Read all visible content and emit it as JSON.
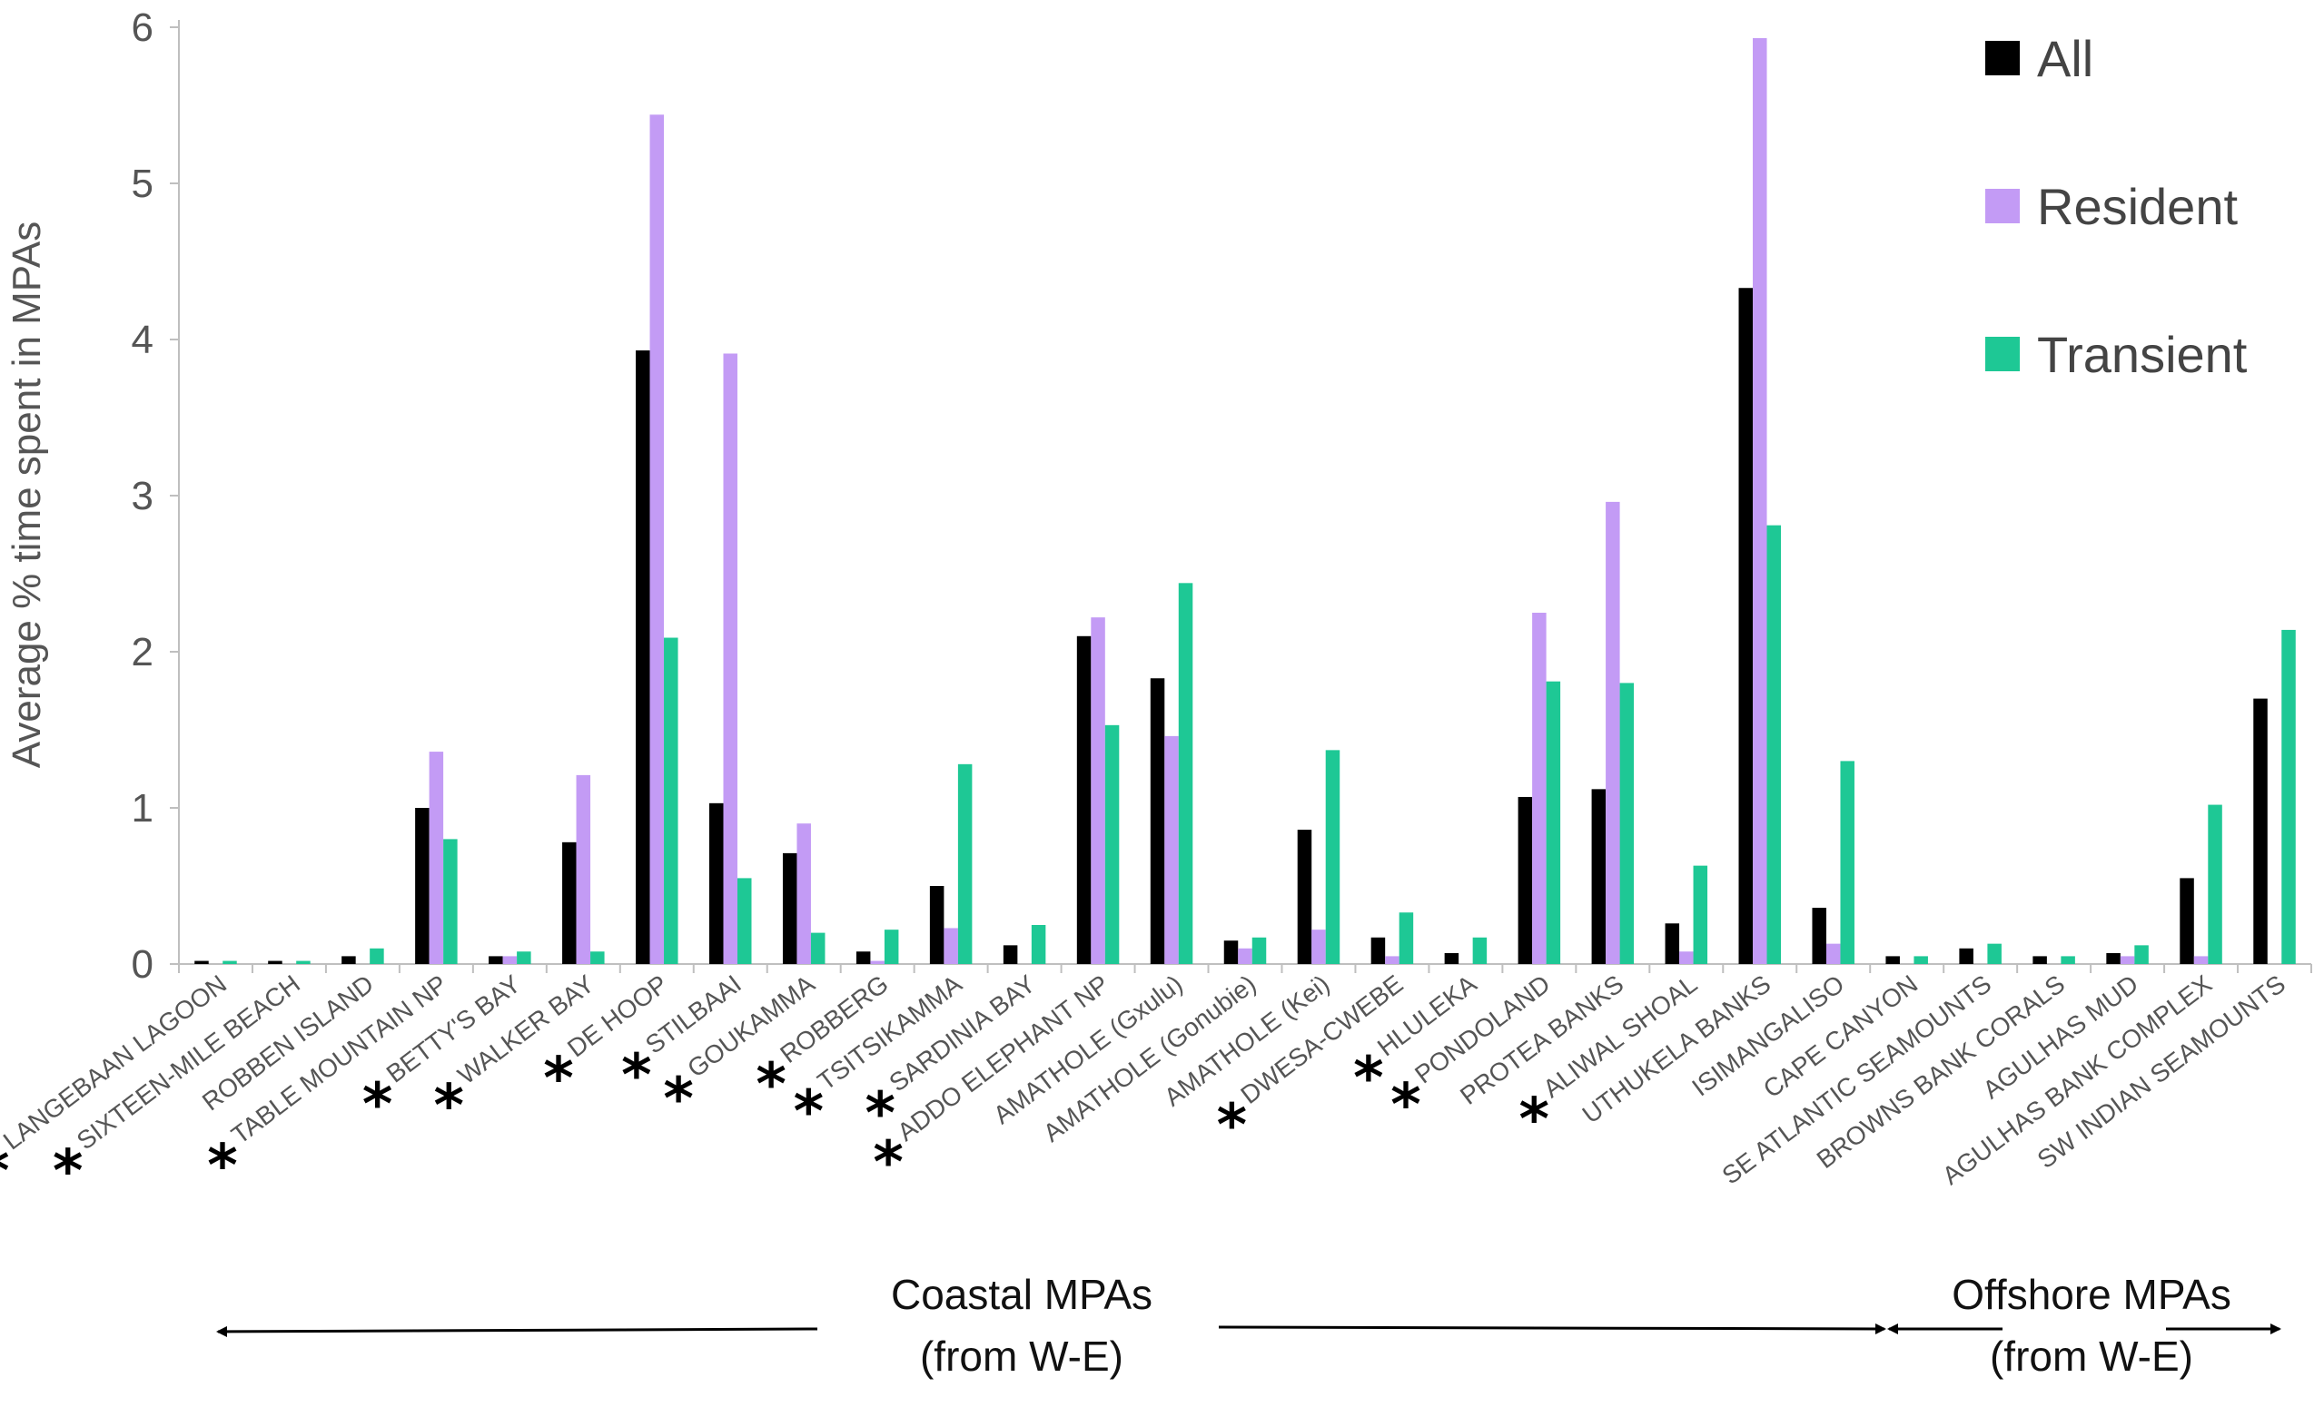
{
  "chart_data": {
    "type": "bar",
    "title": "",
    "xlabel": "",
    "ylabel": "Average % time spent in MPAs",
    "ylim": [
      0,
      6
    ],
    "yticks": [
      0,
      1,
      2,
      3,
      4,
      5,
      6
    ],
    "grid": false,
    "legend_position": "top-right",
    "categories": [
      "LANGEBAAN LAGOON",
      "SIXTEEN-MILE BEACH",
      "ROBBEN ISLAND",
      "TABLE MOUNTAIN NP",
      "BETTY'S BAY",
      "WALKER BAY",
      "DE HOOP",
      "STILBAAI",
      "GOUKAMMA",
      "ROBBERG",
      "TSITSIKAMMA",
      "SARDINIA BAY",
      "ADDO ELEPHANT NP",
      "AMATHOLE (Gxulu)",
      "AMATHOLE (Gonubie)",
      "AMATHOLE (Kei)",
      "DWESA-CWEBE",
      "HLULEKA",
      "PONDOLAND",
      "PROTEA BANKS",
      "ALIWAL SHOAL",
      "UTHUKELA BANKS",
      "ISIMANGALISO",
      "CAPE CANYON",
      "SE ATLANTIC SEAMOUNTS",
      "BROWNS BANK CORALS",
      "AGULHAS MUD",
      "AGULHAS BANK COMPLEX",
      "SW INDIAN SEAMOUNTS"
    ],
    "starred": [
      true,
      true,
      false,
      true,
      true,
      true,
      true,
      true,
      true,
      true,
      true,
      true,
      true,
      false,
      false,
      false,
      true,
      true,
      true,
      false,
      true,
      false,
      false,
      false,
      false,
      false,
      false,
      false,
      false
    ],
    "star_symbol": "*",
    "series": [
      {
        "name": "All",
        "color": "#000000",
        "values": [
          0.02,
          0.02,
          0.05,
          1.0,
          0.05,
          0.78,
          3.93,
          1.03,
          0.71,
          0.08,
          0.5,
          0.12,
          2.1,
          1.83,
          0.15,
          0.86,
          0.17,
          0.07,
          1.07,
          1.12,
          0.26,
          4.33,
          0.36,
          0.05,
          0.1,
          0.05,
          0.07,
          0.55,
          1.7
        ]
      },
      {
        "name": "Resident",
        "color": "#c39bf5",
        "values": [
          0.0,
          0.0,
          0.0,
          1.36,
          0.05,
          1.21,
          5.44,
          3.91,
          0.9,
          0.02,
          0.23,
          0.0,
          2.22,
          1.46,
          0.1,
          0.22,
          0.05,
          0.0,
          2.25,
          2.96,
          0.08,
          5.93,
          0.13,
          0.0,
          0.0,
          0.0,
          0.05,
          0.05,
          0.0
        ]
      },
      {
        "name": "Transient",
        "color": "#1ec895",
        "values": [
          0.02,
          0.02,
          0.1,
          0.8,
          0.08,
          0.08,
          2.09,
          0.55,
          0.2,
          0.22,
          1.28,
          0.25,
          1.53,
          2.44,
          0.17,
          1.37,
          0.33,
          0.17,
          1.81,
          1.8,
          0.63,
          2.81,
          1.3,
          0.05,
          0.13,
          0.05,
          0.12,
          1.02,
          2.14
        ]
      }
    ],
    "annotations": {
      "coastal_line1": "Coastal MPAs",
      "coastal_line2": "(from W-E)",
      "offshore_line1": "Offshore MPAs",
      "offshore_line2": "(from W-E)"
    }
  }
}
